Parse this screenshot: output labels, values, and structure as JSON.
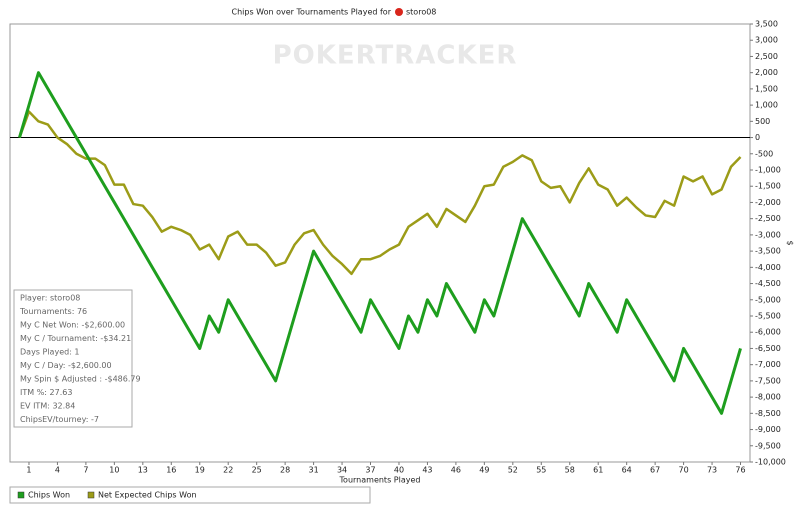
{
  "chart_data": {
    "type": "line",
    "title": "Chips Won over Tournaments Played for",
    "title_player": "storo08",
    "watermark": "POKERTRACKER",
    "x_label": "Tournaments Played",
    "y_label": "$",
    "x": [
      0,
      1,
      2,
      3,
      4,
      5,
      6,
      7,
      8,
      9,
      10,
      11,
      12,
      13,
      14,
      15,
      16,
      17,
      18,
      19,
      20,
      21,
      22,
      23,
      24,
      25,
      26,
      27,
      28,
      29,
      30,
      31,
      32,
      33,
      34,
      35,
      36,
      37,
      38,
      39,
      40,
      41,
      42,
      43,
      44,
      45,
      46,
      47,
      48,
      49,
      50,
      51,
      52,
      53,
      54,
      55,
      56,
      57,
      58,
      59,
      60,
      61,
      62,
      63,
      64,
      65,
      66,
      67,
      68,
      69,
      70,
      71,
      72,
      73,
      74,
      75,
      76
    ],
    "xlim": [
      -1,
      77
    ],
    "xticks": [
      1,
      4,
      7,
      10,
      13,
      16,
      19,
      22,
      25,
      28,
      31,
      34,
      37,
      40,
      43,
      46,
      49,
      52,
      55,
      58,
      61,
      64,
      67,
      70,
      73,
      76
    ],
    "ylim": [
      -10000,
      3500
    ],
    "yticks": [
      {
        "value": 3500,
        "label": "3,500"
      },
      {
        "value": 3000,
        "label": "3,000"
      },
      {
        "value": 2500,
        "label": "2,500"
      },
      {
        "value": 2000,
        "label": "2,000"
      },
      {
        "value": 1500,
        "label": "1,500"
      },
      {
        "value": 1000,
        "label": "1,000"
      },
      500,
      0,
      -500,
      {
        "value": -1000,
        "label": "-1,000"
      },
      {
        "value": -1500,
        "label": "-1,500"
      },
      {
        "value": -2000,
        "label": "-2,000"
      },
      {
        "value": -2500,
        "label": "-2,500"
      },
      {
        "value": -3000,
        "label": "-3,000"
      },
      {
        "value": -3500,
        "label": "-3,500"
      },
      {
        "value": -4000,
        "label": "-4,000"
      },
      {
        "value": -4500,
        "label": "-4,500"
      },
      {
        "value": -5000,
        "label": "-5,000"
      },
      {
        "value": -5500,
        "label": "-5,500"
      },
      {
        "value": -6000,
        "label": "-6,000"
      },
      {
        "value": -6500,
        "label": "-6,500"
      },
      {
        "value": -7000,
        "label": "-7,000"
      },
      {
        "value": -7500,
        "label": "-7,500"
      },
      {
        "value": -8000,
        "label": "-8,000"
      },
      {
        "value": -8500,
        "label": "-8,500"
      },
      {
        "value": -9000,
        "label": "-9,000"
      },
      {
        "value": -9500,
        "label": "-9,500"
      },
      {
        "value": -10000,
        "label": "-10,000"
      }
    ],
    "legend": "bottom",
    "series": [
      {
        "name": "Chips Won",
        "color": "#1e9e1e",
        "values": [
          0,
          1000,
          2000,
          1500,
          1000,
          500,
          0,
          -500,
          -1000,
          -1500,
          -2000,
          -2500,
          -3000,
          -3500,
          -4000,
          -4500,
          -5000,
          -5500,
          -6000,
          -6500,
          -5500,
          -6000,
          -5000,
          -5500,
          -6000,
          -6500,
          -7000,
          -7500,
          -6500,
          -5500,
          -4500,
          -3500,
          -4000,
          -4500,
          -5000,
          -5500,
          -6000,
          -5000,
          -5500,
          -6000,
          -6500,
          -5500,
          -6000,
          -5000,
          -5500,
          -4500,
          -5000,
          -5500,
          -6000,
          -5000,
          -5500,
          -4500,
          -3500,
          -2500,
          -3000,
          -3500,
          -4000,
          -4500,
          -5000,
          -5500,
          -4500,
          -5000,
          -5500,
          -6000,
          -5000,
          -5500,
          -6000,
          -6500,
          -7000,
          -7500,
          -6500,
          -7000,
          -7500,
          -8000,
          -8500,
          -7500,
          -6500
        ]
      },
      {
        "name": "Net Expected Chips Won",
        "color": "#9c9c18",
        "values": [
          0,
          800,
          500,
          400,
          0,
          -200,
          -500,
          -650,
          -650,
          -850,
          -1450,
          -1450,
          -2050,
          -2100,
          -2450,
          -2900,
          -2750,
          -2850,
          -3000,
          -3450,
          -3300,
          -3750,
          -3050,
          -2900,
          -3300,
          -3300,
          -3550,
          -3950,
          -3850,
          -3300,
          -2950,
          -2850,
          -3300,
          -3650,
          -3900,
          -4200,
          -3750,
          -3750,
          -3650,
          -3450,
          -3300,
          -2750,
          -2550,
          -2350,
          -2750,
          -2200,
          -2400,
          -2600,
          -2100,
          -1500,
          -1450,
          -900,
          -750,
          -550,
          -700,
          -1350,
          -1550,
          -1500,
          -2000,
          -1400,
          -950,
          -1450,
          -1600,
          -2100,
          -1850,
          -2150,
          -2400,
          -2450,
          -1950,
          -2100,
          -1200,
          -1350,
          -1200,
          -1750,
          -1600,
          -900,
          -600
        ]
      }
    ],
    "annotations": [
      "Player: storo08",
      "Tournaments: 76",
      "My C Net Won: -$2,600.00",
      "My C / Tournament: -$34.21",
      "Days Played: 1",
      "My C / Day: -$2,600.00",
      "My Spin $ Adjusted : -$486.79",
      "ITM %: 27.63",
      "EV ITM: 32.84",
      "ChipsEV/tourney: -7"
    ]
  }
}
